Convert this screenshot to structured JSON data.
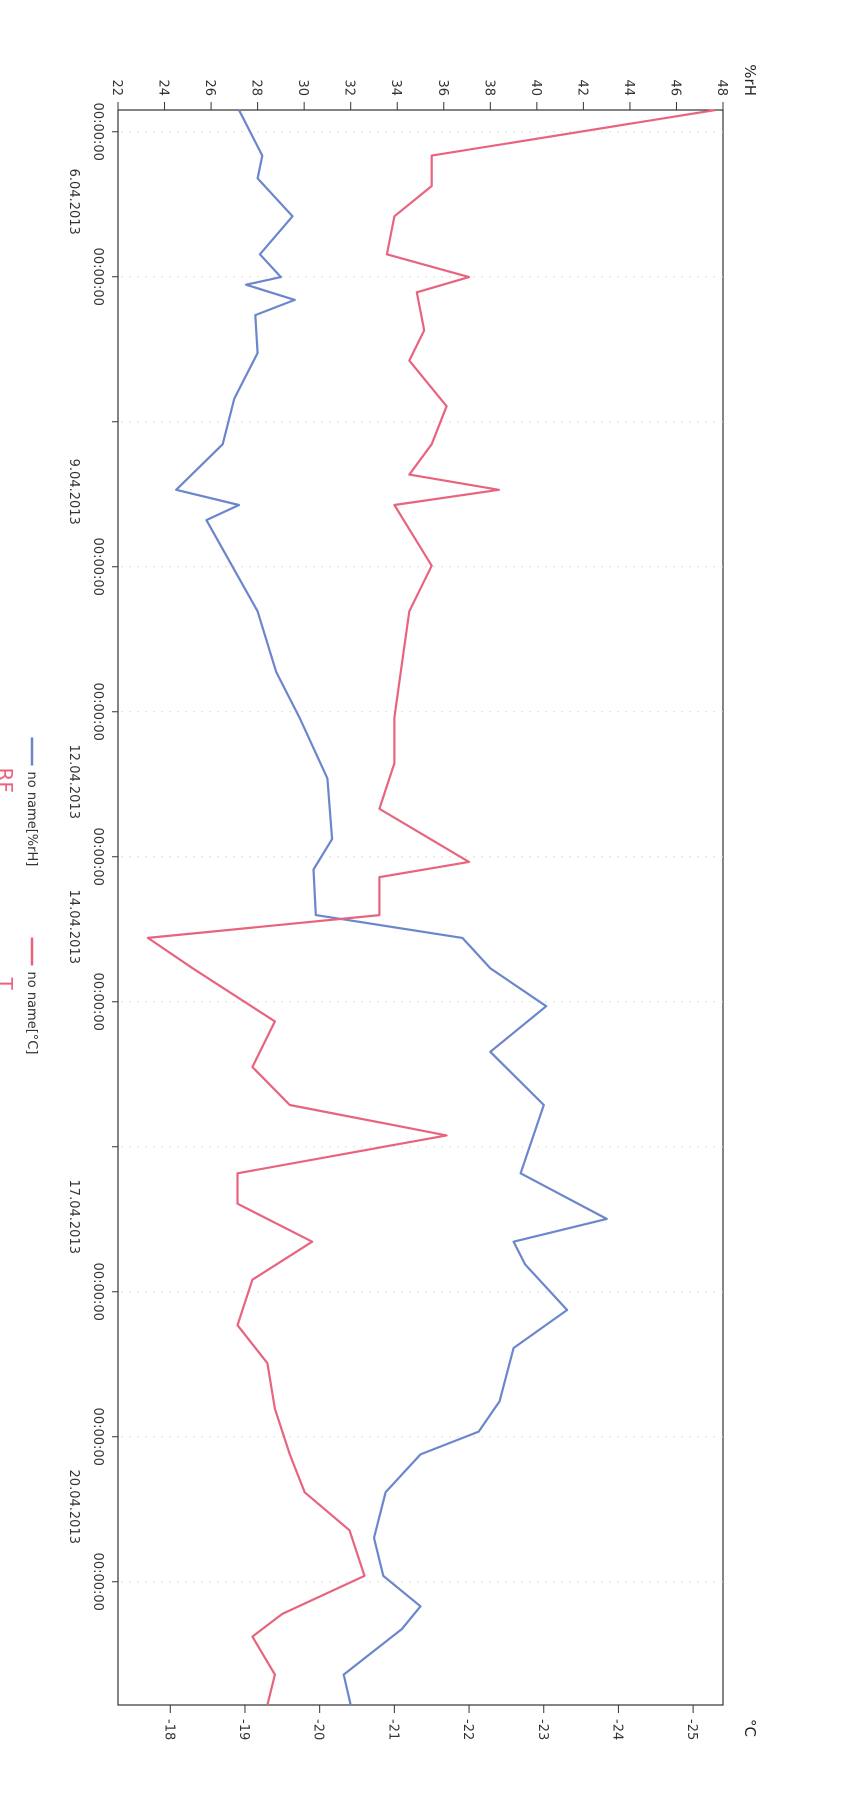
{
  "chart_data": {
    "type": "line",
    "orientation": "rotated 90° clockwise (time axis runs top to bottom)",
    "time_ticks": [
      {
        "time": "00:00:00",
        "date": "6.04.2013"
      },
      {
        "time": "00:00:00",
        "date": ""
      },
      {
        "time": "",
        "date": "9.04.2013"
      },
      {
        "time": "00:00:00",
        "date": ""
      },
      {
        "time": "00:00:00",
        "date": "12.04.2013"
      },
      {
        "time": "00:00:00",
        "date": "14.04.2013"
      },
      {
        "time": "00:00:00",
        "date": ""
      },
      {
        "time": "",
        "date": "17.04.2013"
      },
      {
        "time": "00:00:00",
        "date": ""
      },
      {
        "time": "00:00:00",
        "date": "20.04.2013"
      },
      {
        "time": "00:00:00",
        "date": ""
      }
    ],
    "left_axis": {
      "unit": "%rH",
      "ylim": [
        22,
        48
      ],
      "ticks": [
        22,
        24,
        26,
        28,
        30,
        32,
        34,
        36,
        38,
        40,
        42,
        44,
        46,
        48
      ]
    },
    "right_axis": {
      "unit": "°C",
      "ylim": [
        17.3,
        25.4
      ],
      "ticks": [
        18,
        19,
        20,
        21,
        22,
        23,
        24,
        25
      ],
      "tick_labels": [
        "-18",
        "-19",
        "-20",
        "-21",
        "-22",
        "-23",
        "-24",
        "-25"
      ]
    },
    "xlim": [
      0,
      10.5
    ],
    "series": [
      {
        "name": "no name[%rH]",
        "axis": "left",
        "color": "#6b86cc",
        "t": [
          0.0,
          0.3,
          0.45,
          0.7,
          0.95,
          1.1,
          1.15,
          1.25,
          1.35,
          1.6,
          1.9,
          2.2,
          2.5,
          2.6,
          2.7,
          3.0,
          3.3,
          3.7,
          4.0,
          4.4,
          4.8,
          5.0,
          5.3,
          5.45,
          5.65,
          5.9,
          6.2,
          6.55,
          7.0,
          7.3,
          7.45,
          7.6,
          7.9,
          8.15,
          8.5,
          8.7,
          8.85,
          9.1,
          9.4,
          9.65,
          9.85,
          10.0,
          10.3,
          10.5
        ],
        "y": [
          27.2,
          28.2,
          28.0,
          29.5,
          28.1,
          29.0,
          27.5,
          29.6,
          27.9,
          28.0,
          27.0,
          26.5,
          24.5,
          27.2,
          25.8,
          26.9,
          28.0,
          28.8,
          29.8,
          31.0,
          31.2,
          30.4,
          30.5,
          36.8,
          38.0,
          40.4,
          38.0,
          40.3,
          39.3,
          43.0,
          39.0,
          39.5,
          41.3,
          39.0,
          38.4,
          37.5,
          35.0,
          33.5,
          33.0,
          33.4,
          35.0,
          34.2,
          31.7,
          32.0
        ]
      },
      {
        "name": "no name[°C]",
        "axis": "right",
        "color": "#e8647e",
        "t": [
          0.0,
          0.3,
          0.5,
          0.7,
          0.95,
          1.1,
          1.2,
          1.45,
          1.65,
          1.95,
          2.2,
          2.4,
          2.5,
          2.6,
          3.0,
          3.3,
          3.65,
          4.0,
          4.3,
          4.6,
          4.95,
          5.05,
          5.3,
          5.45,
          5.65,
          6.0,
          6.3,
          6.55,
          6.75,
          7.0,
          7.2,
          7.45,
          7.7,
          8.0,
          8.25,
          8.55,
          8.85,
          9.1,
          9.35,
          9.65,
          9.9,
          10.05,
          10.3,
          10.5
        ],
        "y": [
          25.3,
          21.5,
          21.5,
          21.0,
          20.9,
          22.0,
          21.3,
          21.4,
          21.2,
          21.7,
          21.5,
          21.2,
          22.4,
          21.0,
          21.5,
          21.2,
          21.1,
          21.0,
          21.0,
          20.8,
          22.0,
          20.8,
          20.8,
          17.7,
          18.3,
          19.4,
          19.1,
          19.6,
          21.7,
          18.9,
          18.9,
          19.9,
          19.1,
          18.9,
          19.3,
          19.4,
          19.6,
          19.8,
          20.4,
          20.6,
          19.5,
          19.1,
          19.4,
          19.3
        ]
      }
    ],
    "legend": {
      "placement": "bottom",
      "entries": [
        "no name[%rH]",
        "no name[°C]"
      ]
    },
    "annotations": {
      "left_tag": "RF",
      "right_tag": "T",
      "color": "#e8647e"
    },
    "colors": {
      "rh_line": "#6b86cc",
      "temp_line": "#e8647e",
      "axis": "#333333",
      "grid": "#dddddd"
    }
  }
}
